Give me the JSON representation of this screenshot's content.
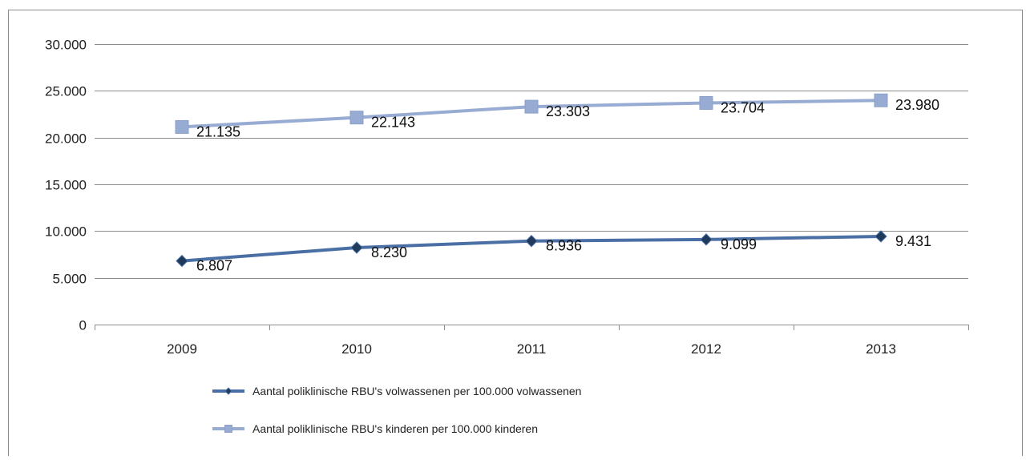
{
  "chart_data": {
    "type": "line",
    "title": "",
    "xlabel": "",
    "ylabel": "",
    "categories": [
      "2009",
      "2010",
      "2011",
      "2012",
      "2013"
    ],
    "ylim": [
      0,
      30000
    ],
    "y_ticks": [
      0,
      5000,
      10000,
      15000,
      20000,
      25000,
      30000
    ],
    "y_tick_labels": [
      "0",
      "5.000",
      "10.000",
      "15.000",
      "20.000",
      "25.000",
      "30.000"
    ],
    "grid": true,
    "legend_position": "bottom-left",
    "series": [
      {
        "name": "Aantal poliklinische RBU's volwassenen per 100.000 volwassenen",
        "values": [
          6807,
          8230,
          8936,
          9099,
          9431
        ],
        "data_labels": [
          "6.807",
          "8.230",
          "8.936",
          "9.099",
          "9.431"
        ],
        "color": "#4a6fa5",
        "marker": "diamond",
        "marker_color": "#1f3a5a"
      },
      {
        "name": "Aantal poliklinische RBU's  kinderen per 100.000 kinderen",
        "values": [
          21135,
          22143,
          23303,
          23704,
          23980
        ],
        "data_labels": [
          "21.135",
          "22.143",
          "23.303",
          "23.704",
          "23.980"
        ],
        "color": "#98acd3",
        "marker": "square",
        "marker_color": "#98acd3"
      }
    ]
  }
}
